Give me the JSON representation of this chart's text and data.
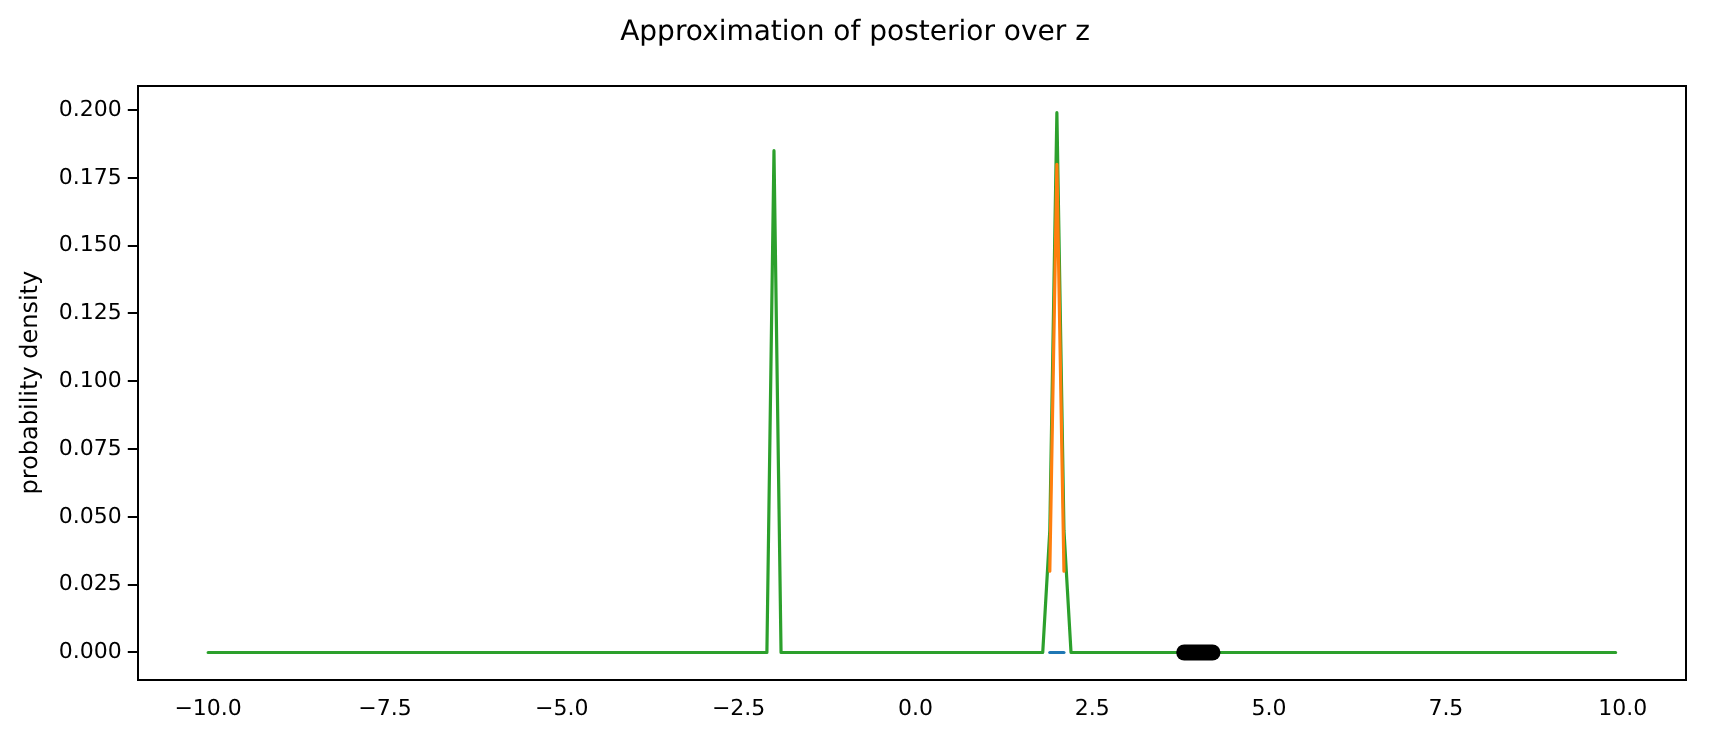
{
  "chart_data": {
    "type": "line",
    "title": "Approximation of posterior over z",
    "ylabel": "probability density",
    "xlim": [
      -10.995,
      10.895
    ],
    "ylim": [
      -0.01,
      0.209
    ],
    "xticks": [
      {
        "value": -10,
        "label": "−10.0"
      },
      {
        "value": -7.5,
        "label": "−7.5"
      },
      {
        "value": -5,
        "label": "−5.0"
      },
      {
        "value": -2.5,
        "label": "−2.5"
      },
      {
        "value": 0,
        "label": "0.0"
      },
      {
        "value": 2.5,
        "label": "2.5"
      },
      {
        "value": 5,
        "label": "5.0"
      },
      {
        "value": 7.5,
        "label": "7.5"
      },
      {
        "value": 10,
        "label": "10.0"
      }
    ],
    "yticks": [
      {
        "value": 0,
        "label": "0.000"
      },
      {
        "value": 0.025,
        "label": "0.025"
      },
      {
        "value": 0.05,
        "label": "0.050"
      },
      {
        "value": 0.075,
        "label": "0.075"
      },
      {
        "value": 0.1,
        "label": "0.100"
      },
      {
        "value": 0.125,
        "label": "0.125"
      },
      {
        "value": 0.15,
        "label": "0.150"
      },
      {
        "value": 0.175,
        "label": "0.175"
      },
      {
        "value": 0.2,
        "label": "0.200"
      }
    ],
    "grid": false,
    "legend": false,
    "marker": "none",
    "line_style": "solid",
    "series": [
      {
        "color": "#1f77b4",
        "x": [
          1.9,
          2.0,
          2.1
        ],
        "values": [
          0,
          0,
          0
        ]
      },
      {
        "color": "#ff7f0e",
        "x": [
          1.9,
          2.0,
          2.1
        ],
        "values": [
          0.03,
          0.18,
          0.03
        ]
      },
      {
        "color": "#2ca02c",
        "x": [
          -10,
          -2.1,
          -2.0,
          -1.9,
          1.8,
          1.9,
          2.0,
          2.1,
          2.2,
          9.9
        ],
        "values": [
          0,
          0,
          0.185,
          0,
          0,
          0.045,
          0.199,
          0.045,
          0,
          0
        ]
      },
      {
        "color": "#000000",
        "x": [
          3.8,
          4.2
        ],
        "values": [
          0,
          0
        ]
      }
    ]
  }
}
